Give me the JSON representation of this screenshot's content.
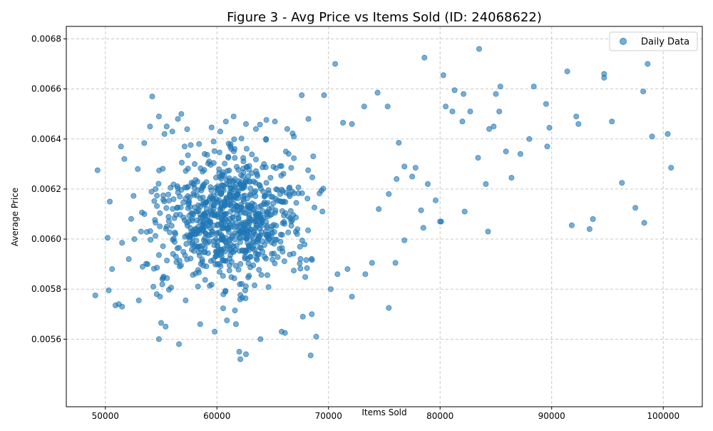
{
  "chart_data": {
    "type": "scatter",
    "title": "Figure 3 - Avg Price vs Items Sold (ID: 24068622)",
    "xlabel": "Items Sold",
    "ylabel": "Average Price",
    "xlim": [
      46500,
      103500
    ],
    "ylim": [
      0.00533,
      0.00685
    ],
    "xticks": [
      50000,
      60000,
      70000,
      80000,
      90000,
      100000
    ],
    "xtick_labels": [
      "50000",
      "60000",
      "70000",
      "80000",
      "90000",
      "100000"
    ],
    "yticks": [
      0.0056,
      0.0058,
      0.006,
      0.0062,
      0.0064,
      0.0066,
      0.0068
    ],
    "ytick_labels": [
      "0.0056",
      "0.0058",
      "0.0060",
      "0.0062",
      "0.0064",
      "0.0066",
      "0.0068"
    ],
    "grid": true,
    "legend": {
      "position": "top-right",
      "entries": [
        "Daily Data"
      ]
    },
    "series": [
      {
        "name": "Daily Data",
        "color": "#1f77b4",
        "points": [
          [
            49300,
            0.006275
          ],
          [
            49100,
            0.005775
          ],
          [
            50400,
            0.00615
          ],
          [
            50200,
            0.006005
          ],
          [
            50600,
            0.00588
          ],
          [
            50300,
            0.005795
          ],
          [
            51200,
            0.00574
          ],
          [
            50900,
            0.005735
          ],
          [
            51500,
            0.00573
          ],
          [
            51500,
            0.005985
          ],
          [
            51700,
            0.00632
          ],
          [
            51400,
            0.00637
          ],
          [
            52100,
            0.00592
          ],
          [
            52900,
            0.00628
          ],
          [
            53200,
            0.00603
          ],
          [
            53500,
            0.0061
          ],
          [
            53000,
            0.005755
          ],
          [
            52600,
            0.006
          ],
          [
            54200,
            0.00657
          ],
          [
            54000,
            0.00645
          ],
          [
            54800,
            0.00649
          ],
          [
            54500,
            0.0062
          ],
          [
            54300,
            0.00581
          ],
          [
            55000,
            0.005665
          ],
          [
            54900,
            0.00577
          ],
          [
            54600,
            0.00578
          ],
          [
            55300,
            0.00642
          ],
          [
            55500,
            0.00645
          ],
          [
            56000,
            0.00643
          ],
          [
            56500,
            0.00648
          ],
          [
            57100,
            0.00637
          ],
          [
            57400,
            0.006335
          ],
          [
            58000,
            0.0063
          ],
          [
            58400,
            0.00638
          ],
          [
            58900,
            0.00634
          ],
          [
            59700,
            0.00639
          ],
          [
            60300,
            0.00643
          ],
          [
            60800,
            0.00647
          ],
          [
            61500,
            0.00649
          ],
          [
            61200,
            0.00637
          ],
          [
            62600,
            0.00646
          ],
          [
            63500,
            0.00644
          ],
          [
            64400,
            0.0064
          ],
          [
            65200,
            0.00647
          ],
          [
            66300,
            0.00644
          ],
          [
            66900,
            0.00641
          ],
          [
            68200,
            0.00648
          ],
          [
            69600,
            0.006575
          ],
          [
            67600,
            0.006575
          ],
          [
            70600,
            0.0067
          ],
          [
            71300,
            0.006465
          ],
          [
            72100,
            0.00646
          ],
          [
            74400,
            0.006585
          ],
          [
            73200,
            0.00653
          ],
          [
            75300,
            0.00653
          ],
          [
            76300,
            0.006385
          ],
          [
            77800,
            0.006285
          ],
          [
            78600,
            0.006725
          ],
          [
            78900,
            0.00622
          ],
          [
            79600,
            0.006155
          ],
          [
            80000,
            0.00607
          ],
          [
            80300,
            0.006655
          ],
          [
            80500,
            0.00653
          ],
          [
            81100,
            0.00651
          ],
          [
            81300,
            0.006595
          ],
          [
            82000,
            0.00647
          ],
          [
            82100,
            0.00658
          ],
          [
            82700,
            0.00651
          ],
          [
            83400,
            0.006325
          ],
          [
            83500,
            0.00676
          ],
          [
            84100,
            0.00622
          ],
          [
            84300,
            0.00603
          ],
          [
            84400,
            0.00644
          ],
          [
            84800,
            0.00645
          ],
          [
            85000,
            0.00658
          ],
          [
            85300,
            0.00651
          ],
          [
            85400,
            0.00661
          ],
          [
            85900,
            0.00635
          ],
          [
            86400,
            0.006245
          ],
          [
            87200,
            0.00634
          ],
          [
            88000,
            0.0064
          ],
          [
            88400,
            0.00661
          ],
          [
            89500,
            0.00654
          ],
          [
            89600,
            0.00637
          ],
          [
            89800,
            0.006445
          ],
          [
            91400,
            0.00667
          ],
          [
            91800,
            0.006055
          ],
          [
            92200,
            0.00649
          ],
          [
            92400,
            0.00646
          ],
          [
            93400,
            0.00604
          ],
          [
            93700,
            0.00608
          ],
          [
            94700,
            0.00666
          ],
          [
            94700,
            0.006645
          ],
          [
            95400,
            0.00647
          ],
          [
            96300,
            0.006225
          ],
          [
            97500,
            0.006125
          ],
          [
            98200,
            0.00659
          ],
          [
            98600,
            0.0067
          ],
          [
            99000,
            0.00641
          ],
          [
            100400,
            0.00642
          ],
          [
            100700,
            0.006285
          ],
          [
            98300,
            0.006065
          ],
          [
            62000,
            0.00555
          ],
          [
            62100,
            0.00552
          ],
          [
            62600,
            0.00554
          ],
          [
            63900,
            0.0056
          ],
          [
            68400,
            0.005535
          ],
          [
            68900,
            0.00561
          ],
          [
            54800,
            0.0056
          ],
          [
            55400,
            0.00565
          ],
          [
            56600,
            0.00558
          ],
          [
            57200,
            0.005755
          ],
          [
            58500,
            0.00566
          ],
          [
            59800,
            0.00563
          ],
          [
            60900,
            0.005675
          ],
          [
            61700,
            0.00566
          ],
          [
            65800,
            0.00563
          ],
          [
            66100,
            0.005625
          ],
          [
            67700,
            0.00569
          ],
          [
            68500,
            0.0057
          ],
          [
            70200,
            0.0058
          ],
          [
            70800,
            0.00586
          ],
          [
            71700,
            0.00588
          ],
          [
            72100,
            0.00577
          ],
          [
            73300,
            0.00586
          ],
          [
            73900,
            0.005905
          ],
          [
            75400,
            0.005725
          ],
          [
            76000,
            0.005905
          ],
          [
            76800,
            0.005995
          ],
          [
            78500,
            0.006045
          ],
          [
            80100,
            0.00607
          ],
          [
            82200,
            0.00611
          ],
          [
            75400,
            0.00618
          ],
          [
            74500,
            0.00612
          ],
          [
            76100,
            0.00624
          ],
          [
            77500,
            0.00625
          ],
          [
            78300,
            0.006115
          ],
          [
            76800,
            0.00629
          ]
        ]
      }
    ],
    "cluster_points": {
      "note_values_only": true,
      "center": [
        61000,
        0.00608
      ],
      "count": 820
    }
  }
}
